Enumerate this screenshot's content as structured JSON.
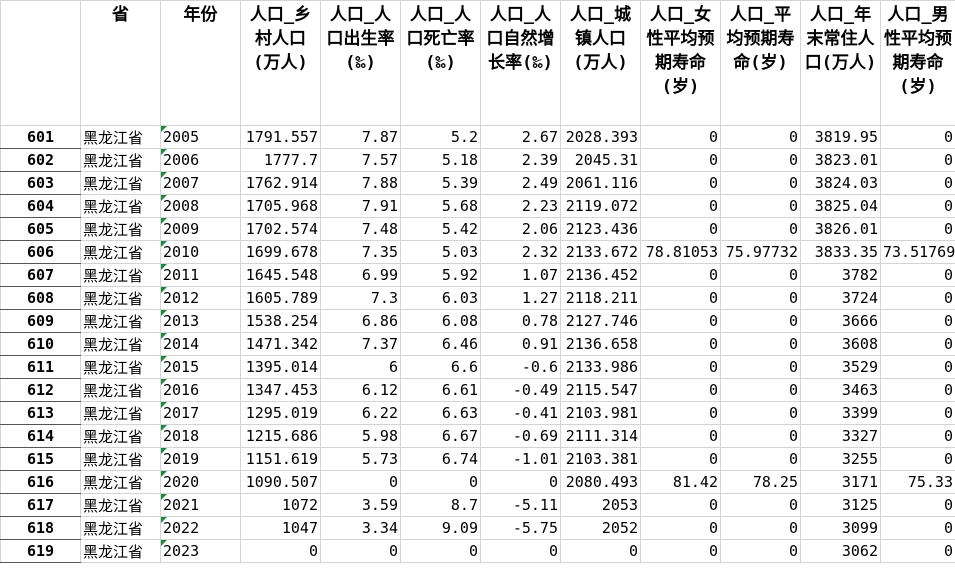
{
  "columns": [
    "省",
    "年份",
    "人口_乡村人口(万人)",
    "人口_人口出生率(‰)",
    "人口_人口死亡率(‰)",
    "人口_人口自然增长率(‰)",
    "人口_城镇人口(万人)",
    "人口_女性平均预期寿命(岁)",
    "人口_平均预期寿命(岁)",
    "人口_年末常住人口(万人)",
    "人口_男性平均预期寿命(岁)"
  ],
  "rows": [
    {
      "row_number": 601,
      "cells": [
        "黑龙江省",
        "2005",
        1791.557,
        7.87,
        5.2,
        2.67,
        2028.393,
        0,
        0,
        3819.95,
        0
      ]
    },
    {
      "row_number": 602,
      "cells": [
        "黑龙江省",
        "2006",
        1777.7,
        7.57,
        5.18,
        2.39,
        2045.31,
        0,
        0,
        3823.01,
        0
      ]
    },
    {
      "row_number": 603,
      "cells": [
        "黑龙江省",
        "2007",
        1762.914,
        7.88,
        5.39,
        2.49,
        2061.116,
        0,
        0,
        3824.03,
        0
      ]
    },
    {
      "row_number": 604,
      "cells": [
        "黑龙江省",
        "2008",
        1705.968,
        7.91,
        5.68,
        2.23,
        2119.072,
        0,
        0,
        3825.04,
        0
      ]
    },
    {
      "row_number": 605,
      "cells": [
        "黑龙江省",
        "2009",
        1702.574,
        7.48,
        5.42,
        2.06,
        2123.436,
        0,
        0,
        3826.01,
        0
      ]
    },
    {
      "row_number": 606,
      "cells": [
        "黑龙江省",
        "2010",
        1699.678,
        7.35,
        5.03,
        2.32,
        2133.672,
        78.81053,
        75.97732,
        3833.35,
        73.51769
      ]
    },
    {
      "row_number": 607,
      "cells": [
        "黑龙江省",
        "2011",
        1645.548,
        6.99,
        5.92,
        1.07,
        2136.452,
        0,
        0,
        3782,
        0
      ]
    },
    {
      "row_number": 608,
      "cells": [
        "黑龙江省",
        "2012",
        1605.789,
        7.3,
        6.03,
        1.27,
        2118.211,
        0,
        0,
        3724,
        0
      ]
    },
    {
      "row_number": 609,
      "cells": [
        "黑龙江省",
        "2013",
        1538.254,
        6.86,
        6.08,
        0.78,
        2127.746,
        0,
        0,
        3666,
        0
      ]
    },
    {
      "row_number": 610,
      "cells": [
        "黑龙江省",
        "2014",
        1471.342,
        7.37,
        6.46,
        0.91,
        2136.658,
        0,
        0,
        3608,
        0
      ]
    },
    {
      "row_number": 611,
      "cells": [
        "黑龙江省",
        "2015",
        1395.014,
        6,
        6.6,
        -0.6,
        2133.986,
        0,
        0,
        3529,
        0
      ]
    },
    {
      "row_number": 612,
      "cells": [
        "黑龙江省",
        "2016",
        1347.453,
        6.12,
        6.61,
        -0.49,
        2115.547,
        0,
        0,
        3463,
        0
      ]
    },
    {
      "row_number": 613,
      "cells": [
        "黑龙江省",
        "2017",
        1295.019,
        6.22,
        6.63,
        -0.41,
        2103.981,
        0,
        0,
        3399,
        0
      ]
    },
    {
      "row_number": 614,
      "cells": [
        "黑龙江省",
        "2018",
        1215.686,
        5.98,
        6.67,
        -0.69,
        2111.314,
        0,
        0,
        3327,
        0
      ]
    },
    {
      "row_number": 615,
      "cells": [
        "黑龙江省",
        "2019",
        1151.619,
        5.73,
        6.74,
        -1.01,
        2103.381,
        0,
        0,
        3255,
        0
      ]
    },
    {
      "row_number": 616,
      "cells": [
        "黑龙江省",
        "2020",
        1090.507,
        0,
        0,
        0,
        2080.493,
        81.42,
        78.25,
        3171,
        75.33
      ]
    },
    {
      "row_number": 617,
      "cells": [
        "黑龙江省",
        "2021",
        1072,
        3.59,
        8.7,
        -5.11,
        2053,
        0,
        0,
        3125,
        0
      ]
    },
    {
      "row_number": 618,
      "cells": [
        "黑龙江省",
        "2022",
        1047,
        3.34,
        9.09,
        -5.75,
        2052,
        0,
        0,
        3099,
        0
      ]
    },
    {
      "row_number": 619,
      "cells": [
        "黑龙江省",
        "2023",
        0,
        0,
        0,
        0,
        0,
        0,
        0,
        3062,
        0
      ]
    }
  ]
}
